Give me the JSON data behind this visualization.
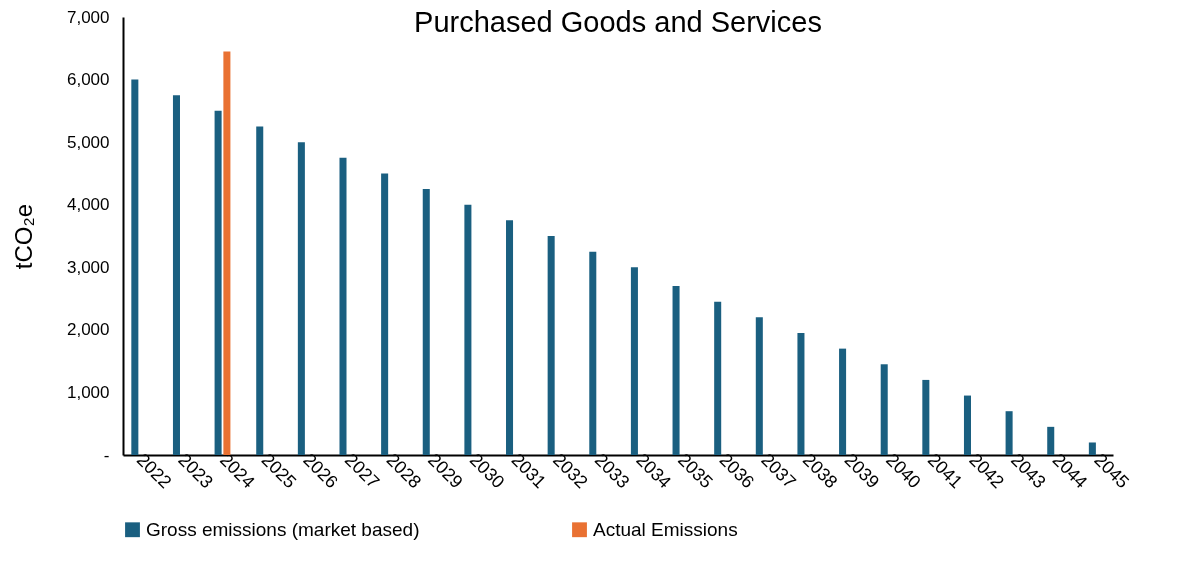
{
  "chart_data": {
    "type": "bar",
    "title": "Purchased Goods and Services",
    "ylabel": "tCO₂e",
    "categories": [
      "2022",
      "2023",
      "2024",
      "2025",
      "2026",
      "2027",
      "2028",
      "2029",
      "2030",
      "2031",
      "2032",
      "2033",
      "2034",
      "2035",
      "2036",
      "2037",
      "2038",
      "2039",
      "2040",
      "2041",
      "2042",
      "2043",
      "2044",
      "2045"
    ],
    "series": [
      {
        "name": "Gross emissions (market based)",
        "color": "#1a5f80",
        "values": [
          6000,
          5750,
          5500,
          5250,
          5000,
          4750,
          4500,
          4250,
          4000,
          3750,
          3500,
          3250,
          3000,
          2700,
          2450,
          2200,
          1950,
          1700,
          1450,
          1200,
          950,
          700,
          450,
          200
        ]
      },
      {
        "name": "Actual Emissions",
        "color": "#e97132",
        "values": [
          null,
          null,
          6450,
          null,
          null,
          null,
          null,
          null,
          null,
          null,
          null,
          null,
          null,
          null,
          null,
          null,
          null,
          null,
          null,
          null,
          null,
          null,
          null,
          null
        ]
      }
    ],
    "ylim": [
      0,
      7000
    ],
    "yticks": [
      {
        "value": 0,
        "label": "-"
      },
      {
        "value": 1000,
        "label": "1,000"
      },
      {
        "value": 2000,
        "label": "2,000"
      },
      {
        "value": 3000,
        "label": "3,000"
      },
      {
        "value": 4000,
        "label": "4,000"
      },
      {
        "value": 5000,
        "label": "5,000"
      },
      {
        "value": 6000,
        "label": "6,000"
      },
      {
        "value": 7000,
        "label": "7,000"
      }
    ],
    "grid": false,
    "legend": "bottom"
  }
}
